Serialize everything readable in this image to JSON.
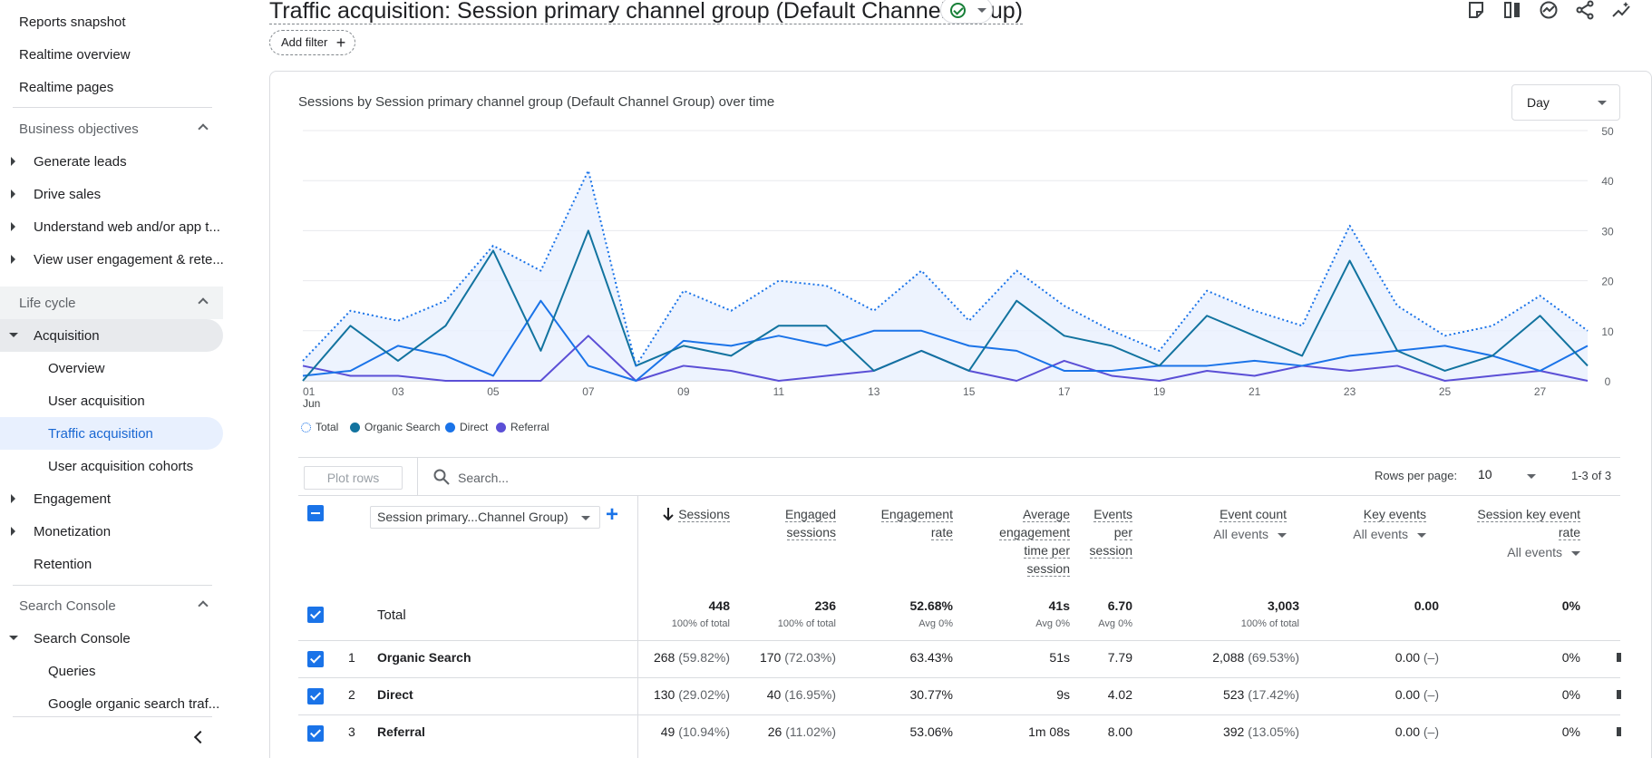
{
  "sidebar": {
    "top_items": [
      "Reports snapshot",
      "Realtime overview",
      "Realtime pages"
    ],
    "business_objectives": {
      "heading": "Business objectives",
      "items": [
        "Generate leads",
        "Drive sales",
        "Understand web and/or app t...",
        "View user engagement & rete..."
      ]
    },
    "life_cycle": {
      "heading": "Life cycle",
      "acquisition": "Acquisition",
      "acquisition_items": [
        "Overview",
        "User acquisition",
        "Traffic acquisition",
        "User acquisition cohorts"
      ],
      "other_items": [
        "Engagement",
        "Monetization",
        "Retention"
      ]
    },
    "search_console": {
      "heading": "Search Console",
      "group": "Search Console",
      "items": [
        "Queries",
        "Google organic search traf..."
      ]
    }
  },
  "header": {
    "title": "Traffic acquisition: Session primary channel group (Default Channel Group)",
    "add_filter": "Add filter"
  },
  "chart": {
    "title": "Sessions by Session primary channel group (Default Channel Group) over time",
    "granularity": "Day",
    "month_label": "Jun"
  },
  "chart_data": {
    "type": "line",
    "title": "Sessions by Session primary channel group (Default Channel Group) over time",
    "xlabel": "",
    "ylabel": "",
    "x": [
      "01",
      "02",
      "03",
      "04",
      "05",
      "06",
      "07",
      "08",
      "09",
      "10",
      "11",
      "12",
      "13",
      "14",
      "15",
      "16",
      "17",
      "18",
      "19",
      "20",
      "21",
      "22",
      "23",
      "24",
      "25",
      "26",
      "27",
      "28"
    ],
    "x_ticks": [
      "01",
      "03",
      "05",
      "07",
      "09",
      "11",
      "13",
      "15",
      "17",
      "19",
      "21",
      "23",
      "25",
      "27"
    ],
    "y_ticks": [
      0,
      10,
      20,
      30,
      40,
      50
    ],
    "ylim": [
      0,
      50
    ],
    "series": [
      {
        "name": "Total",
        "color": "#1a73e8",
        "style": "dotted",
        "values": [
          4,
          14,
          12,
          16,
          27,
          22,
          42,
          3,
          18,
          14,
          20,
          19,
          14,
          22,
          12,
          22,
          15,
          10,
          6,
          18,
          14,
          11,
          31,
          15,
          9,
          11,
          17,
          10
        ]
      },
      {
        "name": "Organic Search",
        "color": "#12739f",
        "style": "solid",
        "values": [
          0,
          11,
          4,
          11,
          26,
          6,
          30,
          3,
          7,
          5,
          11,
          11,
          2,
          6,
          2,
          16,
          9,
          7,
          3,
          13,
          9,
          5,
          24,
          6,
          2,
          5,
          13,
          3
        ]
      },
      {
        "name": "Direct",
        "color": "#1a73e8",
        "style": "solid",
        "values": [
          1,
          2,
          7,
          5,
          1,
          16,
          3,
          0,
          8,
          7,
          9,
          7,
          10,
          10,
          7,
          6,
          2,
          2,
          3,
          3,
          4,
          3,
          5,
          6,
          7,
          5,
          2,
          7
        ]
      },
      {
        "name": "Referral",
        "color": "#5b4fd6",
        "style": "solid",
        "values": [
          3,
          1,
          1,
          0,
          0,
          0,
          9,
          0,
          3,
          2,
          0,
          1,
          2,
          6,
          2,
          0,
          4,
          1,
          0,
          2,
          1,
          3,
          2,
          3,
          0,
          1,
          2,
          0
        ]
      }
    ]
  },
  "legend": [
    "Total",
    "Organic Search",
    "Direct",
    "Referral"
  ],
  "table": {
    "plot_rows": "Plot rows",
    "search_placeholder": "Search...",
    "rows_per_page_label": "Rows per page:",
    "rows_per_page": "10",
    "page_range": "1-3 of 3",
    "dimension": "Session primary...Channel Group)",
    "columns": [
      {
        "label": "Sessions",
        "sub": ""
      },
      {
        "label": "Engaged sessions",
        "sub": ""
      },
      {
        "label": "Engagement rate",
        "sub": ""
      },
      {
        "label": "Average engagement time per session",
        "sub": ""
      },
      {
        "label": "Events per session",
        "sub": ""
      },
      {
        "label": "Event count",
        "sub": "All events"
      },
      {
        "label": "Key events",
        "sub": "All events"
      },
      {
        "label": "Session key event rate",
        "sub": "All events"
      }
    ],
    "total": {
      "label": "Total",
      "values": [
        "448",
        "236",
        "52.68%",
        "41s",
        "6.70",
        "3,003",
        "0.00",
        "0%"
      ],
      "subs": [
        "100% of total",
        "100% of total",
        "Avg 0%",
        "Avg 0%",
        "Avg 0%",
        "100% of total",
        "",
        ""
      ]
    },
    "rows": [
      {
        "idx": "1",
        "name": "Organic Search",
        "sessions": "268",
        "sessions_pct": "(59.82%)",
        "engaged": "170",
        "engaged_pct": "(72.03%)",
        "rate": "63.43%",
        "avg_time": "51s",
        "eps": "7.79",
        "events": "2,088",
        "events_pct": "(69.53%)",
        "key": "0.00",
        "key_pct": "(–)",
        "key_rate": "0%"
      },
      {
        "idx": "2",
        "name": "Direct",
        "sessions": "130",
        "sessions_pct": "(29.02%)",
        "engaged": "40",
        "engaged_pct": "(16.95%)",
        "rate": "30.77%",
        "avg_time": "9s",
        "eps": "4.02",
        "events": "523",
        "events_pct": "(17.42%)",
        "key": "0.00",
        "key_pct": "(–)",
        "key_rate": "0%"
      },
      {
        "idx": "3",
        "name": "Referral",
        "sessions": "49",
        "sessions_pct": "(10.94%)",
        "engaged": "26",
        "engaged_pct": "(11.02%)",
        "rate": "53.06%",
        "avg_time": "1m 08s",
        "eps": "8.00",
        "events": "392",
        "events_pct": "(13.05%)",
        "key": "0.00",
        "key_pct": "(–)",
        "key_rate": "0%"
      }
    ]
  }
}
